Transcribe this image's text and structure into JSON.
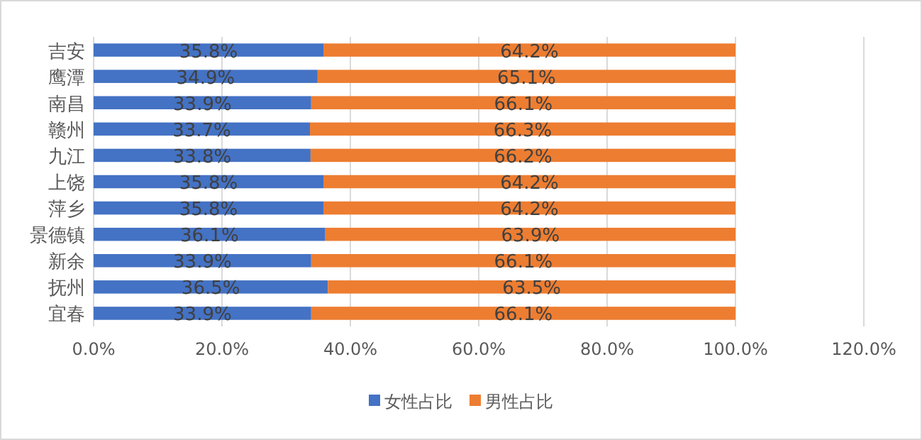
{
  "chart_data": {
    "type": "bar",
    "orientation": "horizontal",
    "stacked": true,
    "grid": "x",
    "legend": "bottom",
    "categories": [
      "吉安",
      "鹰潭",
      "南昌",
      "赣州",
      "九江",
      "上饶",
      "萍乡",
      "景德镇",
      "新余",
      "抚州",
      "宜春"
    ],
    "series": [
      {
        "name": "女性占比",
        "color": "#4472c4",
        "values": [
          35.8,
          34.9,
          33.9,
          33.7,
          33.8,
          35.8,
          35.8,
          36.1,
          33.9,
          36.5,
          33.9
        ],
        "value_labels": [
          "35.8%",
          "34.9%",
          "33.9%",
          "33.7%",
          "33.8%",
          "35.8%",
          "35.8%",
          "36.1%",
          "33.9%",
          "36.5%",
          "33.9%"
        ]
      },
      {
        "name": "男性占比",
        "color": "#ed7d31",
        "values": [
          64.2,
          65.1,
          66.1,
          66.3,
          66.2,
          64.2,
          64.2,
          63.9,
          66.1,
          63.5,
          66.1
        ],
        "value_labels": [
          "64.2%",
          "65.1%",
          "66.1%",
          "66.3%",
          "66.2%",
          "64.2%",
          "64.2%",
          "63.9%",
          "66.1%",
          "63.5%",
          "66.1%"
        ]
      }
    ],
    "xlim": [
      0,
      120
    ],
    "xticks": [
      {
        "value": 0,
        "label": "0.0%"
      },
      {
        "value": 20,
        "label": "20.0%"
      },
      {
        "value": 40,
        "label": "40.0%"
      },
      {
        "value": 60,
        "label": "60.0%"
      },
      {
        "value": 80,
        "label": "80.0%"
      },
      {
        "value": 100,
        "label": "100.0%"
      },
      {
        "value": 120,
        "label": "120.0%"
      }
    ]
  }
}
